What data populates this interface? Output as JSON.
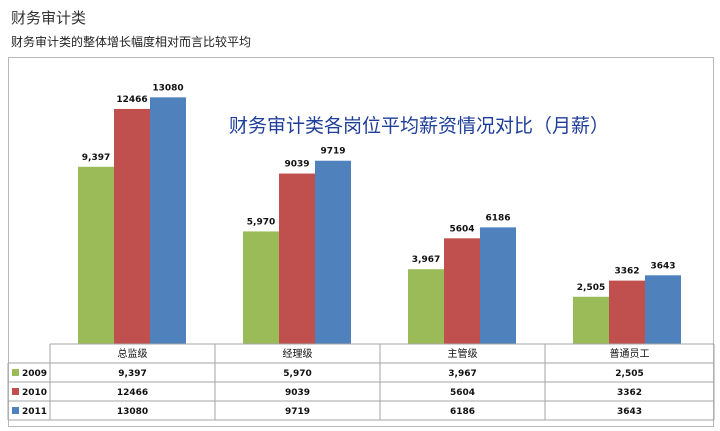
{
  "header": {
    "heading": "财务审计类",
    "subheading": "财务审计类的整体增长幅度相对而言比较平均"
  },
  "chart_data": {
    "type": "bar",
    "title": "财务审计类各岗位平均薪资情况对比（月薪）",
    "categories": [
      "总监级",
      "经理级",
      "主管级",
      "普通员工"
    ],
    "series": [
      {
        "name": "2009",
        "color": "#9bbb59",
        "values": [
          9397,
          5970,
          3967,
          2505
        ],
        "labels": [
          "9,397",
          "5,970",
          "3,967",
          "2,505"
        ]
      },
      {
        "name": "2010",
        "color": "#c0504d",
        "values": [
          12466,
          9039,
          5604,
          3362
        ],
        "labels": [
          "12466",
          "9039",
          "5604",
          "3362"
        ]
      },
      {
        "name": "2011",
        "color": "#4f81bd",
        "values": [
          13080,
          9719,
          6186,
          3643
        ],
        "labels": [
          "13080",
          "9719",
          "6186",
          "3643"
        ]
      }
    ],
    "ylim": [
      0,
      14000
    ],
    "grid": false,
    "legend": "data-table",
    "xlabel": "",
    "ylabel": ""
  }
}
